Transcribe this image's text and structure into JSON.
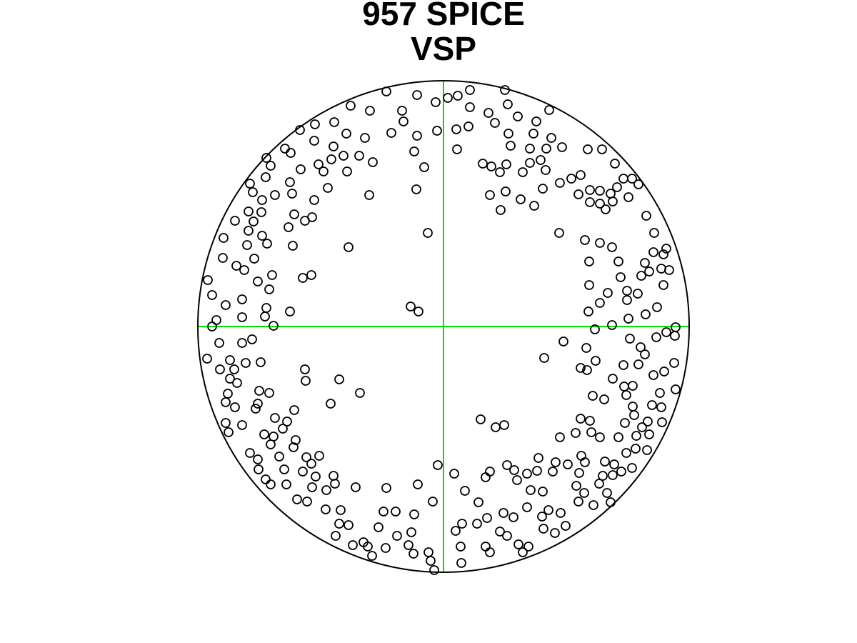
{
  "chart_data": {
    "type": "scatter",
    "title": "957 SPICE",
    "subtitle": "VSP",
    "color": "#000000",
    "xlim": [
      -344,
      344
    ],
    "ylim": [
      -344,
      344
    ],
    "x": [
      -80,
      -37,
      6,
      20,
      37,
      86,
      -11,
      37,
      63,
      90,
      104,
      148,
      130,
      -103,
      -130,
      -58,
      -56,
      -73,
      -37,
      -9,
      18,
      35,
      72,
      91,
      126,
      151,
      144,
      166,
      121,
      94,
      19,
      -41,
      -27,
      -38,
      -22,
      -133,
      -46,
      -35,
      -153,
      -180,
      -201,
      -136,
      -110,
      -181,
      -154,
      -222,
      -214,
      -248,
      -242,
      -118,
      -140,
      -99,
      -157,
      -175,
      -200,
      -168,
      -135,
      -249,
      -215,
      -271,
      -162,
      -212,
      -267,
      -236,
      -254,
      -181,
      -104,
      -273,
      -292,
      -255,
      -266,
      -209,
      -194,
      -184,
      -217,
      -308,
      -273,
      -254,
      -247,
      -275,
      -211,
      -309,
      -265,
      -290,
      -279,
      -240,
      -197,
      -185,
      -330,
      -260,
      -244,
      -324,
      -282,
      -305,
      -248,
      -215,
      -318,
      -324,
      -250,
      -238,
      -282,
      -314,
      -268,
      -331,
      -282,
      -299,
      -313,
      -293,
      -277,
      -256,
      -194,
      -193,
      -299,
      -289,
      -258,
      -244,
      -302,
      -305,
      -260,
      -292,
      -263,
      -209,
      -236,
      -219,
      -282,
      -305,
      -301,
      -225,
      -251,
      -238,
      -242,
      -210,
      -207,
      -271,
      -260,
      -230,
      -192,
      -174,
      -185,
      -259,
      -249,
      -223,
      -197,
      -179,
      -154,
      -152,
      -164,
      -123,
      -242,
      -220,
      -184,
      -205,
      -191,
      -165,
      -144,
      -80,
      -84,
      -67,
      -41,
      -36,
      -8,
      -15,
      -146,
      -117,
      -158,
      -133,
      -146,
      -91,
      -151,
      -112,
      -127,
      -106,
      -100,
      -81,
      -65,
      -45,
      -49,
      -42,
      -21,
      -18,
      -13,
      24,
      25,
      17,
      26,
      47,
      59,
      65,
      61,
      79,
      84,
      98,
      89,
      105,
      111,
      119,
      117,
      138,
      140,
      156,
      171,
      147,
      164,
      122,
      139,
      103,
      117,
      131,
      99,
      89,
      65,
      59,
      30,
      15,
      49,
      133,
      157,
      153,
      174,
      193,
      198,
      190,
      186,
      197,
      189,
      210,
      234,
      229,
      218,
      223,
      237,
      249,
      264,
      239,
      226,
      256,
      285,
      269,
      245,
      270,
      288,
      278,
      254,
      219,
      207,
      192,
      185,
      205,
      163,
      52,
      73,
      85,
      141,
      168,
      200,
      213,
      192,
      201,
      212,
      237,
      225,
      209,
      253,
      265,
      256,
      252,
      276,
      282,
      261,
      273,
      294,
      309,
      323,
      325,
      303,
      305,
      292,
      265,
      267,
      286,
      306,
      324,
      312,
      298,
      325,
      283,
      299,
      259,
      236,
      257,
      248,
      230,
      219,
      203,
      204,
      204,
      198,
      219,
      236,
      245,
      257,
      277,
      282,
      288,
      294,
      308,
      305,
      316,
      308,
      272,
      295,
      312,
      284,
      259,
      273,
      252,
      264,
      243,
      234,
      219,
      205,
      205,
      219,
      227,
      237,
      189,
      162,
      192,
      179,
      163,
      139,
      127,
      108,
      87,
      80,
      65,
      143,
      121,
      136,
      111,
      88,
      79,
      67,
      55,
      202,
      222,
      240
    ],
    "y": [
      329,
      324,
      320,
      323,
      331,
      331,
      314,
      307,
      299,
      311,
      294,
      303,
      287,
      302,
      309,
      302,
      287,
      271,
      267,
      274,
      276,
      280,
      285,
      270,
      270,
      264,
      249,
      251,
      249,
      253,
      248,
      245,
      223,
      192,
      131,
      111,
      28,
      21,
      286,
      283,
      275,
      270,
      264,
      260,
      252,
      249,
      243,
      236,
      225,
      239,
      239,
      230,
      234,
      227,
      220,
      217,
      217,
      209,
      202,
      200,
      194,
      186,
      188,
      184,
      177,
      177,
      184,
      161,
      148,
      160,
      147,
      157,
      148,
      153,
      139,
      124,
      134,
      127,
      116,
      114,
      113,
      96,
      95,
      85,
      79,
      72,
      68,
      72,
      65,
      63,
      52,
      44,
      38,
      30,
      26,
      21,
      9,
      0,
      14,
      1,
      13,
      -23,
      -18,
      -45,
      -23,
      -47,
      -60,
      -60,
      -51,
      -50,
      -60,
      -76,
      -73,
      -79,
      -90,
      -93,
      -94,
      -106,
      -108,
      -113,
      -115,
      -117,
      -128,
      -133,
      -138,
      -135,
      -148,
      -143,
      -151,
      -154,
      -165,
      -169,
      -159,
      -177,
      -186,
      -182,
      -183,
      -181,
      -192,
      -200,
      -214,
      -200,
      -203,
      -210,
      -209,
      -220,
      -229,
      -225,
      -221,
      -221,
      -225,
      -242,
      -245,
      -256,
      -257,
      -226,
      -259,
      -259,
      -263,
      -221,
      -194,
      -245,
      -74,
      -93,
      -108,
      -278,
      -276,
      -281,
      -293,
      -302,
      -306,
      -308,
      -321,
      -310,
      -293,
      -288,
      -306,
      -318,
      -316,
      -328,
      -341,
      -308,
      -331,
      -286,
      -276,
      -276,
      -308,
      -316,
      -268,
      -287,
      -261,
      -267,
      -293,
      -305,
      -316,
      -308,
      -253,
      -266,
      -283,
      -289,
      -279,
      -257,
      -261,
      -229,
      -231,
      -215,
      -206,
      -202,
      -201,
      -194,
      -203,
      -211,
      -230,
      -206,
      -246,
      -184,
      -190,
      -203,
      -193,
      -181,
      -190,
      -205,
      -223,
      -233,
      -245,
      -250,
      -246,
      -233,
      -220,
      -209,
      -208,
      -203,
      -198,
      -193,
      -189,
      -177,
      -173,
      -171,
      -155,
      -153,
      -151,
      -141,
      -135,
      -155,
      -148,
      -129,
      -149,
      -132,
      -155,
      -130,
      -141,
      -138,
      -44,
      -21,
      -30,
      -48,
      -58,
      -61,
      -4,
      -73,
      -102,
      -97,
      -84,
      -83,
      -96,
      -54,
      -29,
      -39,
      -17,
      -53,
      -68,
      -63,
      -51,
      -88,
      -93,
      -113,
      -110,
      -112,
      -124,
      -133,
      -134,
      -13,
      -8,
      -15,
      -1,
      17,
      27,
      11,
      2,
      37,
      69,
      47,
      33,
      21,
      58,
      91,
      121,
      117,
      111,
      91,
      50,
      71,
      89,
      77,
      104,
      101,
      81,
      79,
      58,
      46,
      131,
      109,
      155,
      181,
      199,
      207,
      207,
      195,
      186,
      190,
      191,
      174,
      172,
      164,
      175,
      185,
      131,
      212,
      207,
      201,
      193,
      169,
      178,
      189,
      163,
      184,
      219,
      229,
      233,
      216,
      227,
      216,
      224,
      228,
      248,
      248,
      228
    ]
  }
}
